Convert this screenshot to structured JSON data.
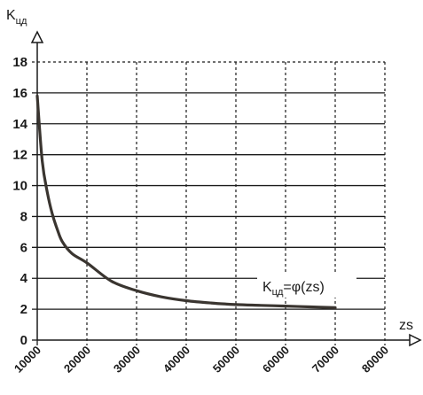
{
  "chart_data": {
    "type": "line",
    "ylabel": {
      "main": "K",
      "sub": "цд"
    },
    "xlabel": "zs",
    "y_ticks": [
      "0",
      "2",
      "4",
      "6",
      "8",
      "10",
      "12",
      "14",
      "16",
      "18"
    ],
    "x_ticks": [
      "10000",
      "20000",
      "30000",
      "40000",
      "50000",
      "60000",
      "70000",
      "80000"
    ],
    "xlim": [
      10000,
      80000
    ],
    "ylim": [
      0,
      18
    ],
    "grid": true,
    "annotation": {
      "main": "K",
      "sub": "цд",
      "rest": "=φ(zs)"
    },
    "series": [
      {
        "x": [
          10000,
          11000,
          12000,
          13000,
          14000,
          15000,
          17000,
          20000,
          25000,
          30000,
          35000,
          40000,
          45000,
          50000,
          55000,
          60000,
          65000,
          70000
        ],
        "y": [
          15.8,
          11.6,
          9.6,
          8.2,
          7.2,
          6.4,
          5.6,
          5.0,
          3.8,
          3.2,
          2.8,
          2.55,
          2.4,
          2.3,
          2.25,
          2.2,
          2.15,
          2.1
        ]
      }
    ],
    "colors": {
      "line": "#3a3530",
      "grid": "#1a1a1a",
      "text": "#1a1a1a"
    }
  }
}
